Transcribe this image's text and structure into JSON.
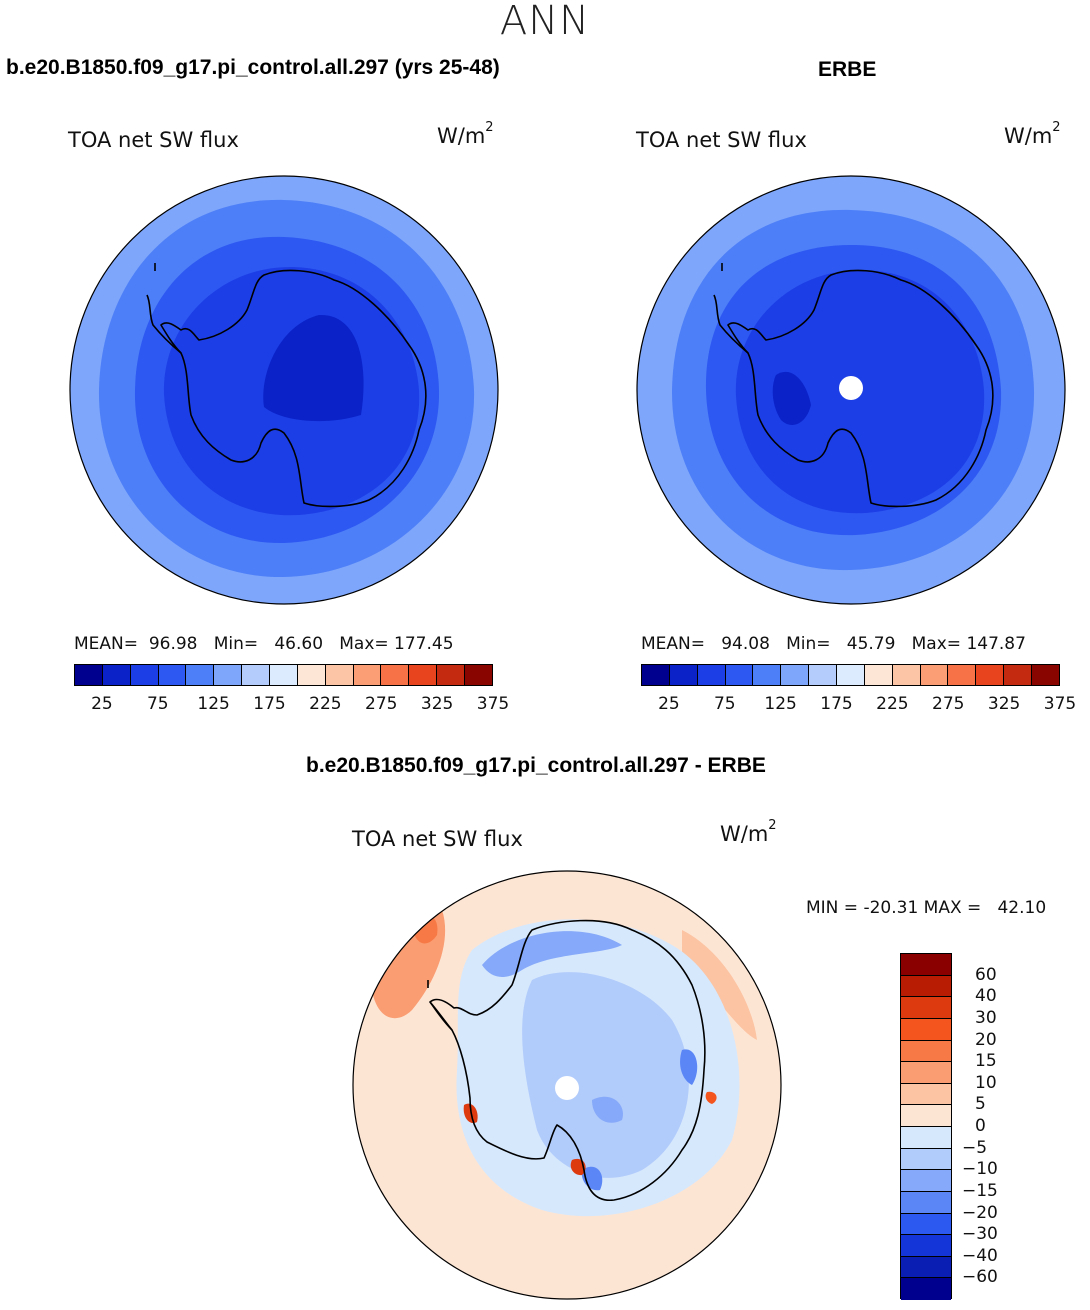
{
  "page_title": "ANN",
  "chart_data": [
    {
      "type": "heatmap",
      "title": "b.e20.B1850.f09_g17.pi_control.all.297 (yrs 25-48)",
      "variable": "TOA net SW flux",
      "units": "W/m",
      "units_sup": "2",
      "projection": "south polar stereographic",
      "stats": {
        "mean_label": "MEAN=",
        "mean": "96.98",
        "min_label": "Min=",
        "min": "46.60",
        "max_label": "Max=",
        "max": "177.45"
      },
      "colorbar_ticks": [
        "25",
        "75",
        "125",
        "175",
        "225",
        "275",
        "325",
        "375"
      ],
      "colorbar_colors": [
        "#00008e",
        "#0a22c8",
        "#1c3ee6",
        "#2e58f2",
        "#4d7ff8",
        "#7ea6fb",
        "#b3ccfc",
        "#dcebfd",
        "#fde6d6",
        "#fcc5a6",
        "#fb9e75",
        "#f77347",
        "#e8441e",
        "#c42a10",
        "#880500"
      ]
    },
    {
      "type": "heatmap",
      "title": "ERBE",
      "variable": "TOA net SW flux",
      "units": "W/m",
      "units_sup": "2",
      "projection": "south polar stereographic",
      "stats": {
        "mean_label": "MEAN=",
        "mean": "94.08",
        "min_label": "Min=",
        "min": "45.79",
        "max_label": "Max=",
        "max": "147.87"
      },
      "colorbar_ticks": [
        "25",
        "75",
        "125",
        "175",
        "225",
        "275",
        "325",
        "375"
      ],
      "colorbar_colors": [
        "#00008e",
        "#0a22c8",
        "#1c3ee6",
        "#2e58f2",
        "#4d7ff8",
        "#7ea6fb",
        "#b3ccfc",
        "#dcebfd",
        "#fde6d6",
        "#fcc5a6",
        "#fb9e75",
        "#f77347",
        "#e8441e",
        "#c42a10",
        "#880500"
      ]
    },
    {
      "type": "heatmap",
      "title": "b.e20.B1850.f09_g17.pi_control.all.297 - ERBE",
      "variable": "TOA net SW flux",
      "units": "W/m",
      "units_sup": "2",
      "projection": "south polar stereographic",
      "stats": {
        "min_label": "MIN =",
        "min": "-20.31",
        "max_label": "MAX =",
        "max": "42.10"
      },
      "colorbar_ticks": [
        "60",
        "40",
        "30",
        "20",
        "15",
        "10",
        "5",
        "0",
        "−5",
        "−10",
        "−15",
        "−20",
        "−30",
        "−40",
        "−60"
      ],
      "colorbar_colors": [
        "#8a0000",
        "#b81d04",
        "#de3a10",
        "#f4541e",
        "#f77a46",
        "#fa9d72",
        "#fcc4a2",
        "#fde5d4",
        "#d6e8fc",
        "#b1cbfb",
        "#86a9f9",
        "#5b86f6",
        "#2c5af0",
        "#1436d8",
        "#0a1eb4",
        "#00008e"
      ]
    }
  ]
}
